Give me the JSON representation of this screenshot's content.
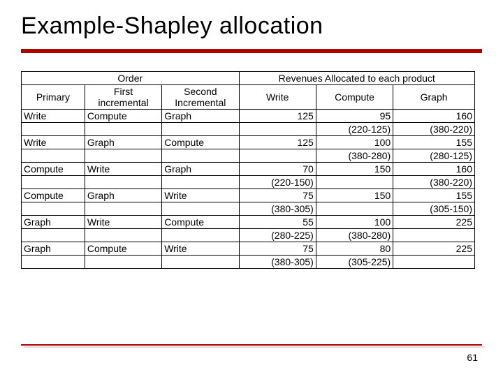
{
  "title": "Example-Shapley allocation",
  "page_number": "61",
  "colors": {
    "accent": "#b00000",
    "text": "#000000",
    "background": "#ffffff"
  },
  "table": {
    "header_group_left": "Order",
    "header_group_right": "Revenues Allocated to each product",
    "subheaders": {
      "c1": "Primary",
      "c2": "First incremental",
      "c3": "Second Incremental",
      "c4": "Write",
      "c5": "Compute",
      "c6": "Graph"
    },
    "rows": [
      {
        "primary": "Write",
        "first": "Compute",
        "second": "Graph",
        "write_v": "125",
        "compute_v": "95",
        "graph_v": "160",
        "write_f": "",
        "compute_f": "(220-125)",
        "graph_f": "(380-220)"
      },
      {
        "primary": "Write",
        "first": "Graph",
        "second": "Compute",
        "write_v": "125",
        "compute_v": "100",
        "graph_v": "155",
        "write_f": "",
        "compute_f": "(380-280)",
        "graph_f": "(280-125)"
      },
      {
        "primary": "Compute",
        "first": "Write",
        "second": "Graph",
        "write_v": "70",
        "compute_v": "150",
        "graph_v": "160",
        "write_f": "(220-150)",
        "compute_f": "",
        "graph_f": "(380-220)"
      },
      {
        "primary": "Compute",
        "first": "Graph",
        "second": "Write",
        "write_v": "75",
        "compute_v": "150",
        "graph_v": "155",
        "write_f": "(380-305)",
        "compute_f": "",
        "graph_f": "(305-150)"
      },
      {
        "primary": "Graph",
        "first": "Write",
        "second": "Compute",
        "write_v": "55",
        "compute_v": "100",
        "graph_v": "225",
        "write_f": "(280-225)",
        "compute_f": "(380-280)",
        "graph_f": ""
      },
      {
        "primary": "Graph",
        "first": "Compute",
        "second": "Write",
        "write_v": "75",
        "compute_v": "80",
        "graph_v": "225",
        "write_f": "(380-305)",
        "compute_f": "(305-225)",
        "graph_f": ""
      }
    ]
  }
}
